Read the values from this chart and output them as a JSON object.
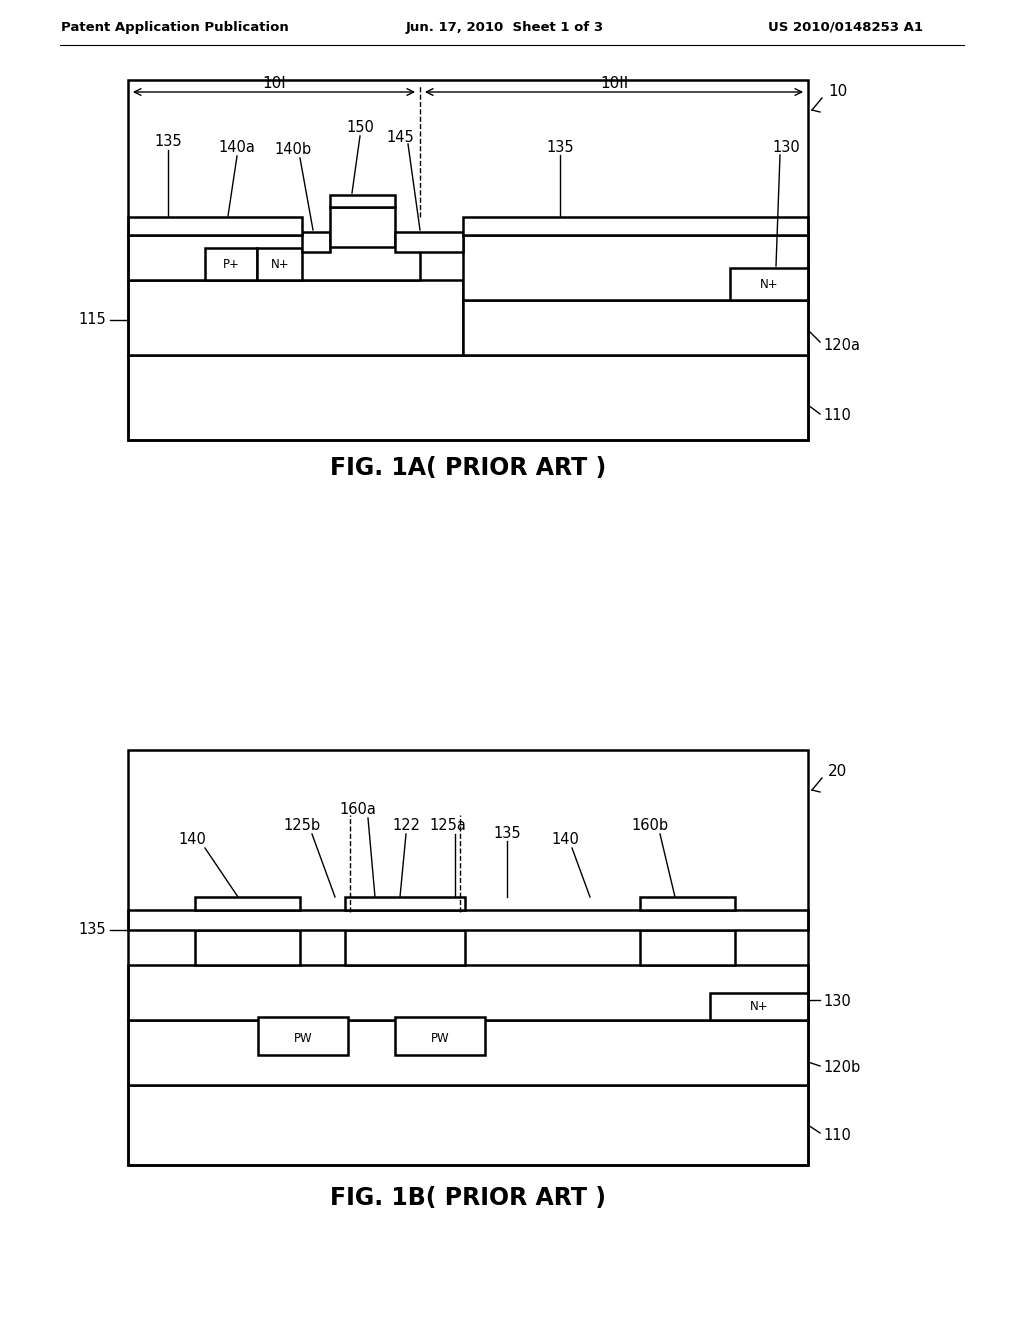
{
  "bg_color": "#ffffff",
  "header_left": "Patent Application Publication",
  "header_mid": "Jun. 17, 2010  Sheet 1 of 3",
  "header_right": "US 2010/0148253 A1",
  "fig1a_caption": "FIG. 1A( PRIOR ART )",
  "fig1b_caption": "FIG. 1B( PRIOR ART )",
  "lw": 1.8,
  "tlw": 1.0
}
